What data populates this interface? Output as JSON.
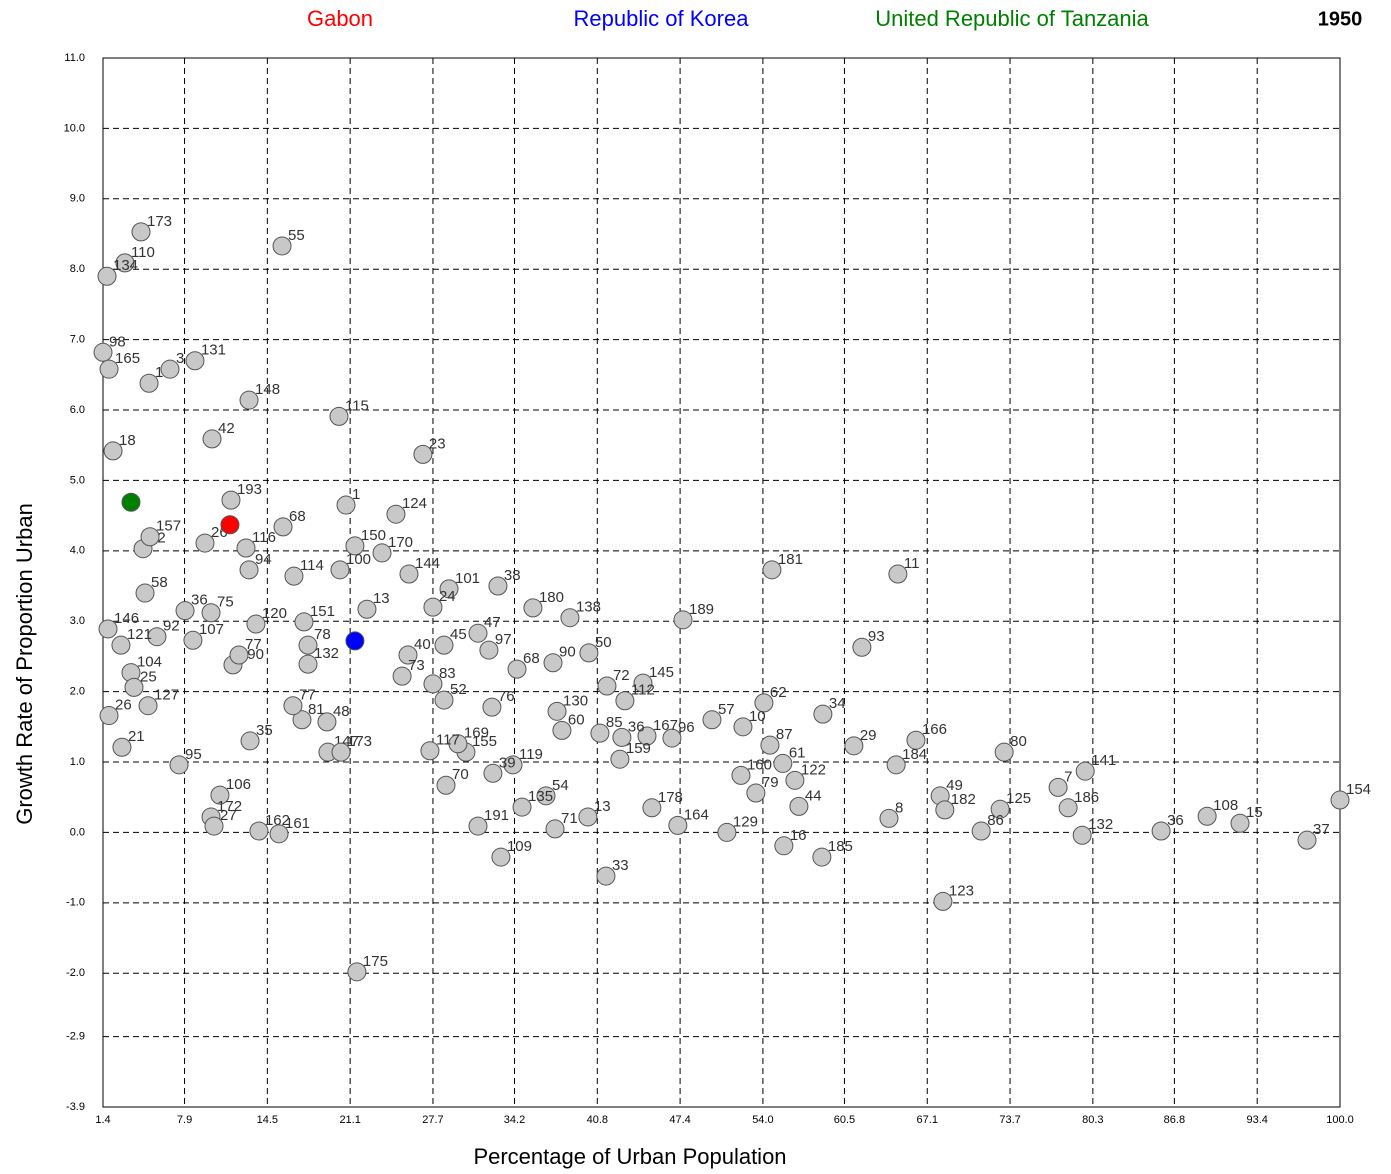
{
  "chart_data": {
    "type": "scatter",
    "annotation": "1950",
    "x_label": "Percentage of Urban Population",
    "y_label": "Growth Rate of Proportion Urban",
    "xlim": [
      1.4,
      100.0
    ],
    "ylim": [
      -3.9,
      11.0
    ],
    "xticks": [
      1.4,
      7.9,
      14.5,
      21.1,
      27.7,
      34.2,
      40.8,
      47.4,
      {
        "value": 54,
        "label": "54.0"
      },
      60.5,
      67.1,
      73.7,
      80.3,
      86.8,
      93.4,
      {
        "value": 100,
        "label": "100.0"
      }
    ],
    "yticks": [
      {
        "value": -3.9,
        "label": "-3.9"
      },
      {
        "value": -2.9,
        "label": "-2.9"
      },
      {
        "value": -2,
        "label": "-2.0"
      },
      {
        "value": -1,
        "label": "-1.0"
      },
      {
        "value": 0,
        "label": "0.0"
      },
      {
        "value": 1,
        "label": "1.0"
      },
      {
        "value": 2,
        "label": "2.0"
      },
      {
        "value": 3,
        "label": "3.0"
      },
      {
        "value": 4,
        "label": "4.0"
      },
      {
        "value": 5,
        "label": "5.0"
      },
      {
        "value": 6,
        "label": "6.0"
      },
      {
        "value": 7,
        "label": "7.0"
      },
      {
        "value": 8,
        "label": "8.0"
      },
      {
        "value": 9,
        "label": "9.0"
      },
      {
        "value": 10,
        "label": "10.0"
      },
      {
        "value": 11,
        "label": "11.0"
      }
    ],
    "grid": true,
    "series": [
      {
        "color": "#c8c8c8",
        "point_labels": [
          "173",
          "110",
          "134",
          "55",
          "98",
          "165",
          "131",
          "3",
          "1",
          "148",
          "115",
          "42",
          "23",
          "18",
          "193",
          "1",
          "124",
          "68",
          "26",
          "116",
          "32",
          "157",
          "150",
          "170",
          "94",
          "114",
          "100",
          "144",
          "101",
          "38",
          "58",
          "36",
          "75",
          "180",
          "138",
          "189",
          "11",
          "181",
          "93",
          "24",
          "13",
          "107",
          "92",
          "146",
          "121",
          "151",
          "120",
          "78",
          "132",
          "190",
          "77",
          "47",
          "97",
          "45",
          "50",
          "90",
          "68",
          "40",
          "73",
          "104",
          "25",
          "127",
          "26",
          "21",
          "95",
          "83",
          "52",
          "76",
          "130",
          "72",
          "145",
          "112",
          "62",
          "57",
          "10",
          "34",
          "87",
          "29",
          "166",
          "184",
          "80",
          "141",
          "7",
          "186",
          "132",
          "36",
          "108",
          "15",
          "37",
          "154",
          "125",
          "86",
          "49",
          "182",
          "8",
          "123",
          "185",
          "16",
          "44",
          "122",
          "61",
          "160",
          "79",
          "129",
          "164",
          "178",
          "96",
          "167",
          "159",
          "36",
          "85",
          "60",
          "13",
          "33",
          "71",
          "54",
          "135",
          "191",
          "109",
          "119",
          "39",
          "70",
          "155",
          "169",
          "147",
          "173",
          "48",
          "81",
          "77",
          "35",
          "106",
          "172",
          "27",
          "162",
          "161",
          "175",
          "117"
        ],
        "x": [
          4.43,
          3.15,
          1.72,
          15.67,
          1.4,
          1.88,
          8.73,
          6.74,
          5.07,
          13.04,
          20.21,
          10.09,
          26.9,
          2.2,
          11.6,
          20.77,
          24.75,
          15.75,
          9.53,
          12.8,
          4.59,
          5.15,
          21.48,
          23.64,
          13.04,
          16.62,
          20.29,
          25.79,
          28.98,
          32.88,
          4.75,
          7.94,
          10.01,
          35.67,
          38.62,
          47.63,
          64.76,
          54.72,
          61.89,
          27.7,
          22.44,
          8.57,
          5.7,
          1.8,
          2.83,
          17.42,
          13.59,
          17.74,
          17.74,
          11.76,
          12.24,
          31.29,
          32.16,
          28.58,
          40.13,
          37.27,
          34.4,
          25.71,
          25.24,
          3.63,
          3.87,
          4.99,
          1.88,
          2.91,
          7.46,
          27.7,
          28.58,
          32.4,
          37.59,
          41.57,
          44.44,
          43.0,
          54.08,
          49.94,
          52.41,
          58.78,
          54.56,
          61.25,
          66.2,
          64.62,
          73.23,
          79.69,
          77.53,
          78.33,
          79.45,
          85.74,
          89.41,
          92.03,
          97.37,
          100.0,
          72.91,
          71.4,
          68.13,
          68.5,
          64.05,
          68.35,
          58.7,
          55.67,
          56.87,
          56.55,
          55.59,
          52.25,
          53.44,
          51.13,
          47.22,
          45.15,
          46.75,
          44.76,
          42.6,
          42.76,
          41.01,
          37.98,
          40.05,
          41.49,
          37.43,
          36.71,
          34.8,
          31.29,
          33.12,
          34.08,
          32.48,
          28.74,
          30.33,
          29.69,
          19.33,
          20.37,
          19.25,
          17.26,
          16.54,
          13.12,
          10.72,
          10.01,
          10.25,
          13.83,
          15.43,
          21.64,
          27.46
        ],
        "values": [
          8.53,
          8.09,
          7.9,
          8.33,
          6.82,
          6.58,
          6.7,
          6.58,
          6.38,
          6.14,
          5.91,
          5.59,
          5.37,
          5.42,
          4.72,
          4.65,
          4.52,
          4.34,
          4.11,
          4.04,
          4.03,
          4.2,
          4.07,
          3.97,
          3.73,
          3.64,
          3.73,
          3.67,
          3.46,
          3.5,
          3.4,
          3.15,
          3.12,
          3.19,
          3.05,
          3.02,
          3.67,
          3.73,
          2.63,
          3.2,
          3.17,
          2.73,
          2.78,
          2.89,
          2.66,
          2.99,
          2.96,
          2.66,
          2.39,
          2.38,
          2.52,
          2.83,
          2.59,
          2.66,
          2.55,
          2.41,
          2.32,
          2.52,
          2.22,
          2.27,
          2.06,
          1.8,
          1.66,
          1.21,
          0.96,
          2.11,
          1.88,
          1.78,
          1.72,
          2.08,
          2.12,
          1.87,
          1.84,
          1.6,
          1.5,
          1.68,
          1.24,
          1.23,
          1.31,
          0.96,
          1.14,
          0.87,
          0.64,
          0.35,
          -0.04,
          0.02,
          0.23,
          0.13,
          -0.11,
          0.46,
          0.33,
          0.02,
          0.52,
          0.32,
          0.2,
          -0.98,
          -0.35,
          -0.19,
          0.37,
          0.74,
          0.98,
          0.81,
          0.56,
          0.0,
          0.1,
          0.35,
          1.34,
          1.37,
          1.04,
          1.35,
          1.41,
          1.45,
          0.22,
          -0.62,
          0.05,
          0.52,
          0.36,
          0.09,
          -0.35,
          0.96,
          0.84,
          0.67,
          1.14,
          1.26,
          1.14,
          1.14,
          1.57,
          1.6,
          1.8,
          1.3,
          0.53,
          0.22,
          0.09,
          0.02,
          -0.02,
          -1.98,
          1.16
        ]
      },
      {
        "name": "Gabon",
        "color": "#ff0000",
        "x": [
          11.52
        ],
        "values": [
          4.37
        ]
      },
      {
        "name": "Republic of Korea",
        "color": "#0000ff",
        "x": [
          21.48
        ],
        "values": [
          2.72
        ]
      },
      {
        "name": "United Republic of Tanzania",
        "color": "#008000",
        "x": [
          3.63
        ],
        "values": [
          4.69
        ]
      }
    ]
  }
}
